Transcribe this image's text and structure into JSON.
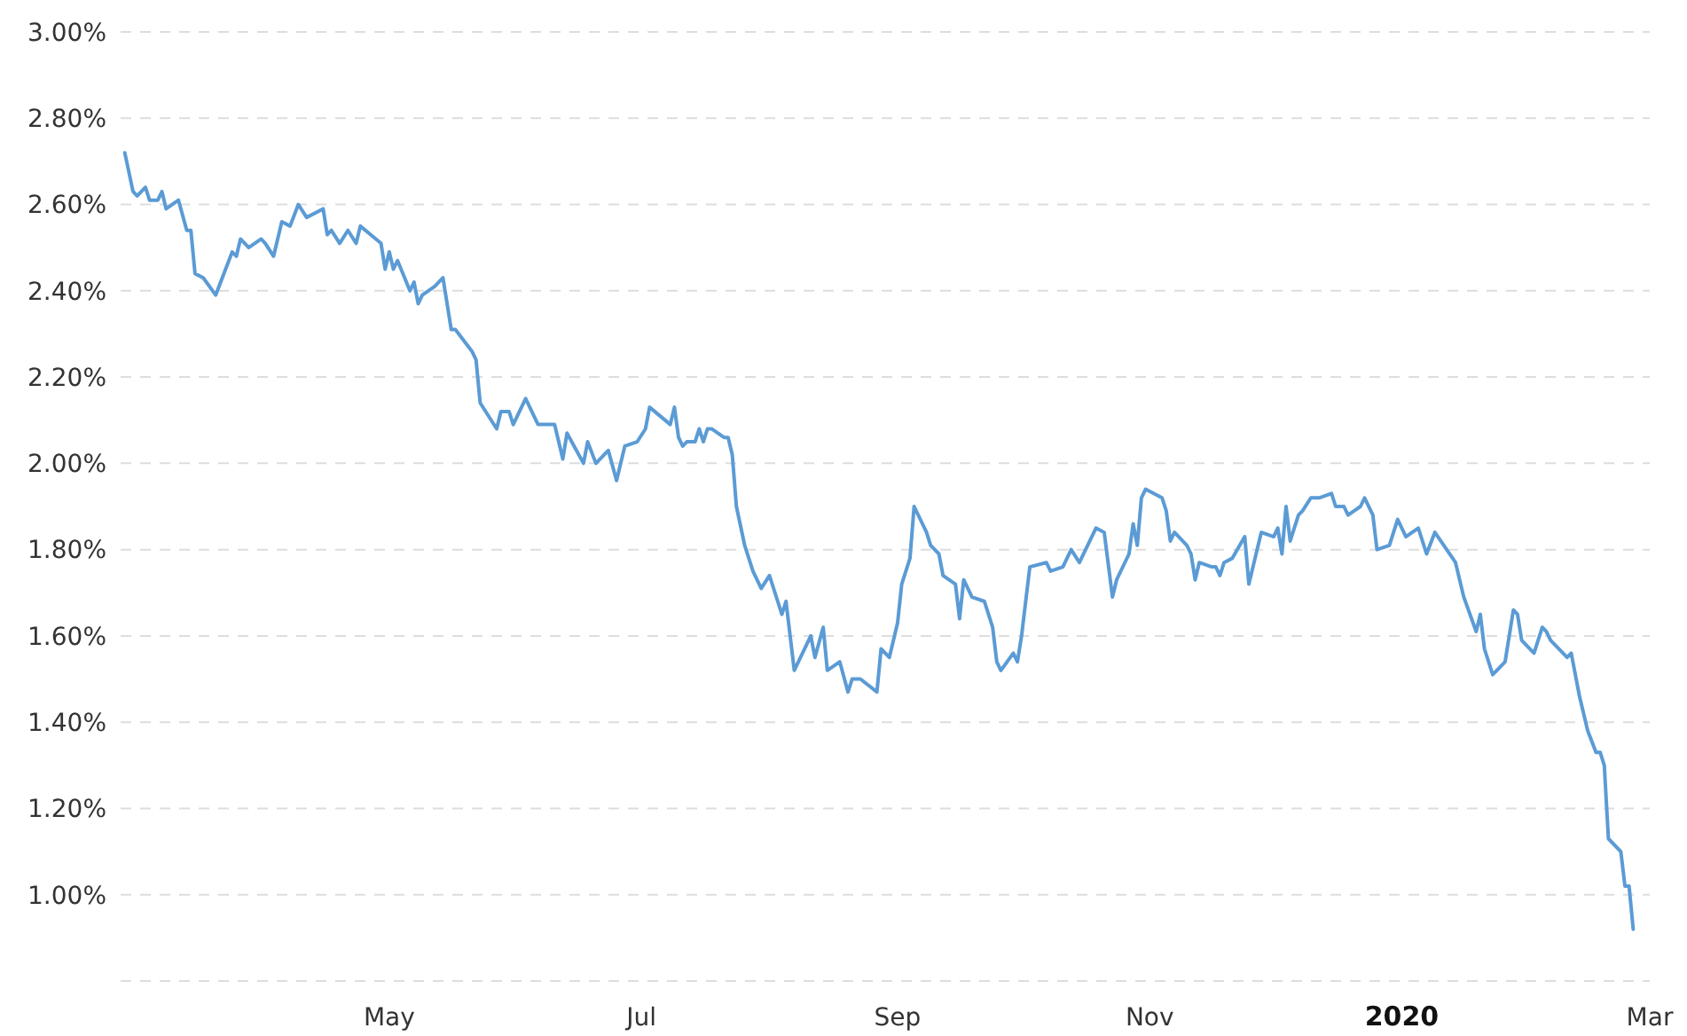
{
  "chart_data": {
    "type": "line",
    "grid": "y",
    "marker": "none",
    "line_style": "solid",
    "xlim": [
      "2019-02-25",
      "2020-03-01"
    ],
    "xticks": [
      {
        "value": "2019-05-01",
        "label": "May"
      },
      {
        "value": "2019-07-01",
        "label": "Jul"
      },
      {
        "value": "2019-09-01",
        "label": "Sep"
      },
      {
        "value": "2019-11-01",
        "label": "Nov"
      },
      {
        "value": "2020-01-01",
        "label": "2020"
      },
      {
        "value": "2020-03-01",
        "label": "Mar"
      }
    ],
    "ylim": [
      0.8,
      3.0
    ],
    "yticks": [
      {
        "value": 0.8,
        "label": null
      },
      {
        "value": 1.0,
        "label": "1.00%"
      },
      {
        "value": 1.2,
        "label": "1.20%"
      },
      {
        "value": 1.4,
        "label": "1.40%"
      },
      {
        "value": 1.6,
        "label": "1.60%"
      },
      {
        "value": 1.8,
        "label": "1.80%"
      },
      {
        "value": 2.0,
        "label": "2.00%"
      },
      {
        "value": 2.2,
        "label": "2.20%"
      },
      {
        "value": 2.4,
        "label": "2.40%"
      },
      {
        "value": 2.6,
        "label": "2.60%"
      },
      {
        "value": 2.8,
        "label": "2.80%"
      },
      {
        "value": 3.0,
        "label": "3.00%"
      }
    ],
    "series": [
      {
        "color": "#5b9bd5",
        "x": [
          "2019-02-26",
          "2019-02-28",
          "2019-03-01",
          "2019-03-03",
          "2019-03-04",
          "2019-03-06",
          "2019-03-07",
          "2019-03-08",
          "2019-03-11",
          "2019-03-13",
          "2019-03-14",
          "2019-03-15",
          "2019-03-17",
          "2019-03-20",
          "2019-03-24",
          "2019-03-25",
          "2019-03-26",
          "2019-03-28",
          "2019-03-31",
          "2019-04-01",
          "2019-04-03",
          "2019-04-05",
          "2019-04-07",
          "2019-04-09",
          "2019-04-11",
          "2019-04-15",
          "2019-04-16",
          "2019-04-17",
          "2019-04-19",
          "2019-04-21",
          "2019-04-23",
          "2019-04-24",
          "2019-04-29",
          "2019-04-30",
          "2019-05-01",
          "2019-05-02",
          "2019-05-03",
          "2019-05-06",
          "2019-05-07",
          "2019-05-08",
          "2019-05-09",
          "2019-05-12",
          "2019-05-14",
          "2019-05-16",
          "2019-05-17",
          "2019-05-21",
          "2019-05-22",
          "2019-05-23",
          "2019-05-27",
          "2019-05-28",
          "2019-05-30",
          "2019-05-31",
          "2019-06-03",
          "2019-06-06",
          "2019-06-10",
          "2019-06-12",
          "2019-06-13",
          "2019-06-17",
          "2019-06-18",
          "2019-06-20",
          "2019-06-23",
          "2019-06-25",
          "2019-06-27",
          "2019-06-30",
          "2019-07-02",
          "2019-07-03",
          "2019-07-08",
          "2019-07-09",
          "2019-07-10",
          "2019-07-11",
          "2019-07-12",
          "2019-07-14",
          "2019-07-15",
          "2019-07-16",
          "2019-07-17",
          "2019-07-18",
          "2019-07-21",
          "2019-07-22",
          "2019-07-23",
          "2019-07-24",
          "2019-07-26",
          "2019-07-28",
          "2019-07-30",
          "2019-08-01",
          "2019-08-03",
          "2019-08-04",
          "2019-08-05",
          "2019-08-07",
          "2019-08-09",
          "2019-08-11",
          "2019-08-12",
          "2019-08-14",
          "2019-08-15",
          "2019-08-18",
          "2019-08-20",
          "2019-08-21",
          "2019-08-23",
          "2019-08-27",
          "2019-08-28",
          "2019-08-30",
          "2019-09-01",
          "2019-09-02",
          "2019-09-04",
          "2019-09-05",
          "2019-09-08",
          "2019-09-09",
          "2019-09-11",
          "2019-09-12",
          "2019-09-15",
          "2019-09-16",
          "2019-09-17",
          "2019-09-19",
          "2019-09-22",
          "2019-09-24",
          "2019-09-25",
          "2019-09-26",
          "2019-09-29",
          "2019-09-30",
          "2019-10-01",
          "2019-10-03",
          "2019-10-07",
          "2019-10-08",
          "2019-10-11",
          "2019-10-13",
          "2019-10-15",
          "2019-10-19",
          "2019-10-21",
          "2019-10-23",
          "2019-10-24",
          "2019-10-27",
          "2019-10-28",
          "2019-10-29",
          "2019-10-30",
          "2019-10-31",
          "2019-11-04",
          "2019-11-05",
          "2019-11-06",
          "2019-11-07",
          "2019-11-10",
          "2019-11-11",
          "2019-11-12",
          "2019-11-13",
          "2019-11-16",
          "2019-11-17",
          "2019-11-18",
          "2019-11-19",
          "2019-11-21",
          "2019-11-24",
          "2019-11-25",
          "2019-11-26",
          "2019-11-28",
          "2019-12-01",
          "2019-12-02",
          "2019-12-03",
          "2019-12-04",
          "2019-12-05",
          "2019-12-07",
          "2019-12-08",
          "2019-12-10",
          "2019-12-12",
          "2019-12-15",
          "2019-12-16",
          "2019-12-18",
          "2019-12-19",
          "2019-12-22",
          "2019-12-23",
          "2019-12-25",
          "2019-12-26",
          "2019-12-29",
          "2019-12-31",
          "2020-01-02",
          "2020-01-05",
          "2020-01-07",
          "2020-01-09",
          "2020-01-14",
          "2020-01-16",
          "2020-01-19",
          "2020-01-20",
          "2020-01-21",
          "2020-01-23",
          "2020-01-26",
          "2020-01-28",
          "2020-01-29",
          "2020-01-30",
          "2020-02-02",
          "2020-02-04",
          "2020-02-05",
          "2020-02-06",
          "2020-02-10",
          "2020-02-11",
          "2020-02-13",
          "2020-02-15",
          "2020-02-17",
          "2020-02-18",
          "2020-02-19",
          "2020-02-20",
          "2020-02-23",
          "2020-02-24",
          "2020-02-25",
          "2020-02-26"
        ],
        "values": [
          2.72,
          2.63,
          2.62,
          2.64,
          2.61,
          2.61,
          2.63,
          2.59,
          2.61,
          2.54,
          2.54,
          2.44,
          2.43,
          2.39,
          2.49,
          2.48,
          2.52,
          2.5,
          2.52,
          2.51,
          2.48,
          2.56,
          2.55,
          2.6,
          2.57,
          2.59,
          2.53,
          2.54,
          2.51,
          2.54,
          2.51,
          2.55,
          2.51,
          2.45,
          2.49,
          2.45,
          2.47,
          2.4,
          2.42,
          2.37,
          2.39,
          2.41,
          2.43,
          2.31,
          2.31,
          2.26,
          2.24,
          2.14,
          2.08,
          2.12,
          2.12,
          2.09,
          2.15,
          2.09,
          2.09,
          2.01,
          2.07,
          2.0,
          2.05,
          2.0,
          2.03,
          1.96,
          2.04,
          2.05,
          2.08,
          2.13,
          2.09,
          2.13,
          2.06,
          2.04,
          2.05,
          2.05,
          2.08,
          2.05,
          2.08,
          2.08,
          2.06,
          2.06,
          2.02,
          1.9,
          1.81,
          1.75,
          1.71,
          1.74,
          1.68,
          1.65,
          1.68,
          1.52,
          1.56,
          1.6,
          1.55,
          1.62,
          1.52,
          1.54,
          1.47,
          1.5,
          1.5,
          1.47,
          1.57,
          1.55,
          1.63,
          1.72,
          1.78,
          1.9,
          1.84,
          1.81,
          1.79,
          1.74,
          1.72,
          1.64,
          1.73,
          1.69,
          1.68,
          1.62,
          1.54,
          1.52,
          1.56,
          1.54,
          1.6,
          1.76,
          1.77,
          1.75,
          1.76,
          1.8,
          1.77,
          1.85,
          1.84,
          1.69,
          1.73,
          1.79,
          1.86,
          1.81,
          1.92,
          1.94,
          1.92,
          1.89,
          1.82,
          1.84,
          1.81,
          1.79,
          1.73,
          1.77,
          1.76,
          1.76,
          1.74,
          1.77,
          1.78,
          1.83,
          1.72,
          1.76,
          1.84,
          1.83,
          1.85,
          1.79,
          1.9,
          1.82,
          1.88,
          1.89,
          1.92,
          1.92,
          1.93,
          1.9,
          1.9,
          1.88,
          1.9,
          1.92,
          1.88,
          1.8,
          1.81,
          1.87,
          1.83,
          1.85,
          1.79,
          1.84,
          1.77,
          1.69,
          1.61,
          1.65,
          1.57,
          1.51,
          1.54,
          1.66,
          1.65,
          1.59,
          1.56,
          1.62,
          1.61,
          1.59,
          1.55,
          1.56,
          1.46,
          1.38,
          1.33,
          1.33,
          1.3,
          1.13,
          1.1,
          1.02,
          1.02,
          0.92
        ]
      }
    ]
  }
}
